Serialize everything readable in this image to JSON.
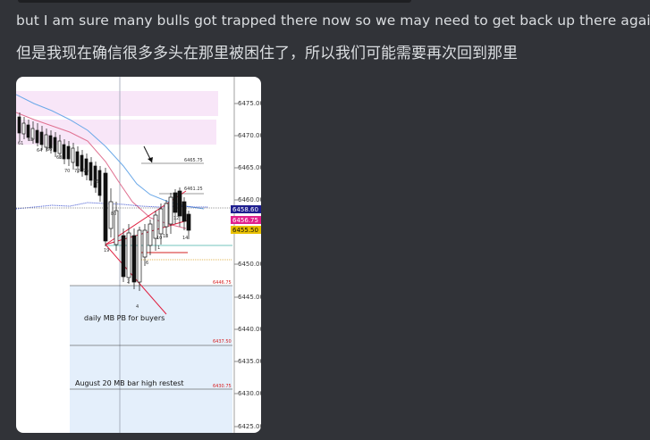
{
  "message": {
    "line1": "but I am sure many bulls got trapped there now so we may need to get back up there again",
    "line2": "但是我现在确信很多多头在那里被困住了，所以我们可能需要再次回到那里"
  },
  "chart": {
    "y_axis_ticks": [
      "6475.00",
      "6470.00",
      "6465.00",
      "6460.00",
      "6455.00",
      "6450.00",
      "6445.00",
      "6440.00",
      "6435.00",
      "6430.00",
      "6425.00"
    ],
    "price_tags": {
      "blue": "6458.60",
      "magenta": "6456.75",
      "yellow": "6455.50"
    },
    "colors": {
      "blue": "#1f1f8f",
      "magenta": "#e0208c",
      "yellow": "#e8c000"
    },
    "level_labels": {
      "l1": "6465.75",
      "l2": "6461.25",
      "l3": "6446.75",
      "l4": "6437.50",
      "l5": "6430.75"
    },
    "bar_numbers": [
      "61",
      "62",
      "64",
      "66",
      "68",
      "70",
      "72",
      "74",
      "76",
      "80",
      "1",
      "2",
      "4",
      "6",
      "10",
      "12",
      "13",
      "14",
      "19"
    ],
    "annotations": {
      "daily": "daily MB PB for buyers",
      "august": "August 20  MB bar high restest"
    }
  }
}
